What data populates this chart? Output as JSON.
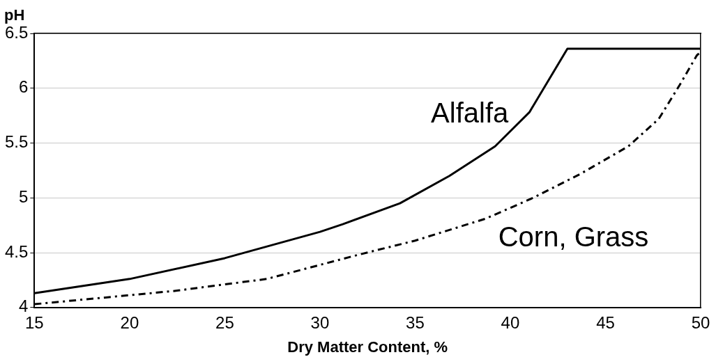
{
  "chart_data": {
    "type": "line",
    "xlabel": "Dry Matter Content, %",
    "ylabel": "pH",
    "xlim": [
      15,
      50
    ],
    "xticks": [
      15,
      20,
      25,
      30,
      35,
      40,
      45,
      50
    ],
    "ylim": [
      4,
      6.5
    ],
    "yticks": [
      4,
      4.5,
      5,
      5.5,
      6,
      6.5
    ],
    "grid": "y",
    "legend": false,
    "marker": "none",
    "series": [
      {
        "name": "Alfalfa",
        "color": "#000000",
        "line_style": "solid",
        "x": [
          15,
          20,
          25,
          30,
          31.2,
          34.2,
          36.8,
          39.2,
          41,
          43,
          50
        ],
        "values": [
          4.13,
          4.26,
          4.45,
          4.69,
          4.76,
          4.95,
          5.2,
          5.47,
          5.78,
          6.36,
          6.36
        ]
      },
      {
        "name": "Corn, Grass",
        "color": "#000000",
        "line_style": "dashed",
        "x": [
          15,
          22.3,
          27.2,
          32,
          35,
          38.7,
          41.2,
          43.7,
          46.2,
          47.8,
          48.9,
          49.8,
          50
        ],
        "values": [
          4.03,
          4.15,
          4.26,
          4.48,
          4.61,
          4.81,
          5.0,
          5.22,
          5.47,
          5.72,
          6.03,
          6.3,
          6.33
        ]
      }
    ]
  }
}
